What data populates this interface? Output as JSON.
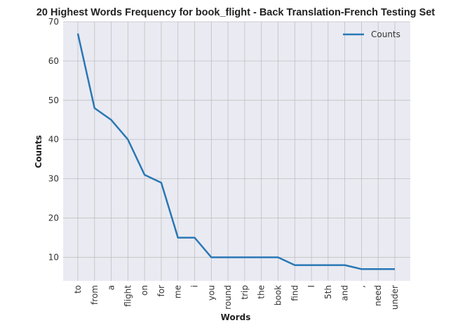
{
  "chart_data": {
    "type": "line",
    "title": "20 Highest Words Frequency for book_flight - Back Translation-French Testing Set",
    "xlabel": "Words",
    "ylabel": "Counts",
    "categories": [
      "to",
      "from",
      "a",
      "flight",
      "on",
      "for",
      "me",
      "i",
      "you",
      "round",
      "trip",
      "the",
      "book",
      "find",
      "I",
      "5th",
      "and",
      ",",
      "need",
      "under"
    ],
    "series": [
      {
        "name": "Counts",
        "values": [
          67,
          48,
          45,
          40,
          31,
          29,
          15,
          15,
          10,
          10,
          10,
          10,
          10,
          8,
          8,
          8,
          8,
          7,
          7,
          7
        ]
      }
    ],
    "yticks": [
      10,
      20,
      30,
      40,
      50,
      60,
      70
    ],
    "ylim": [
      4,
      70
    ],
    "grid": true,
    "legend": "top-right",
    "colors": {
      "line": "#2878b5",
      "plot_bg": "#eaeaf2",
      "grid": "#c0c0c0"
    }
  }
}
